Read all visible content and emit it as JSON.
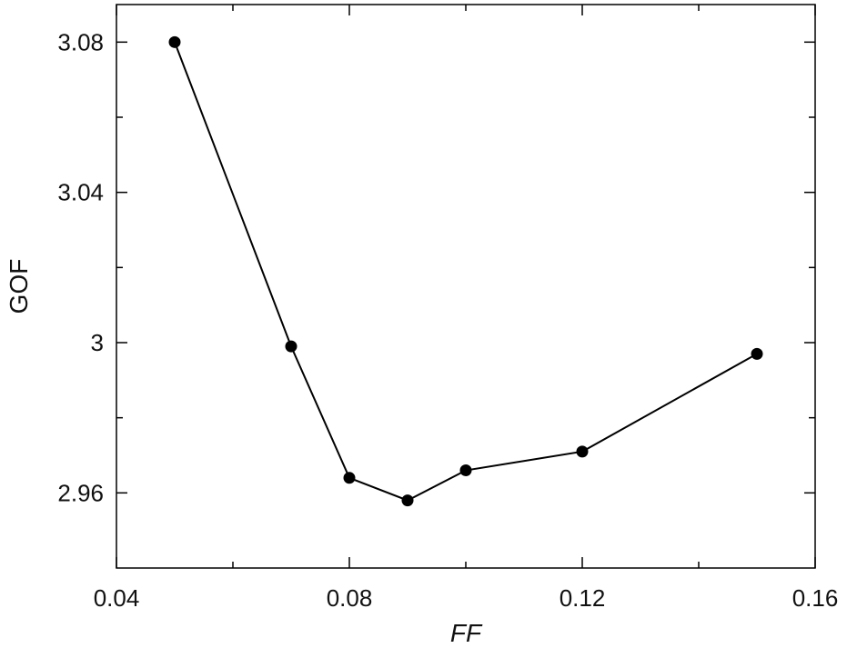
{
  "chart_data": {
    "type": "line",
    "title": "",
    "xlabel": "FF",
    "ylabel": "GOF",
    "xlim": [
      0.04,
      0.16
    ],
    "ylim": [
      2.94,
      3.09
    ],
    "xticks": [
      "0.04",
      "0.08",
      "0.12",
      "0.16"
    ],
    "yticks": [
      "2.96",
      "3",
      "3.04",
      "3.08"
    ],
    "grid": false,
    "series": [
      {
        "x": [
          0.05,
          0.07,
          0.08,
          0.09,
          0.1,
          0.12,
          0.15
        ],
        "y": [
          3.08,
          2.999,
          2.964,
          2.958,
          2.966,
          2.971,
          2.997
        ]
      }
    ],
    "colors": {
      "line": "#000000",
      "marker": "#000000",
      "axis": "#000000"
    }
  }
}
